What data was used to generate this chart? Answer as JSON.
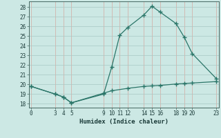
{
  "line1_x": [
    0,
    3,
    4,
    5,
    9,
    10,
    11,
    12,
    14,
    15,
    16,
    18,
    19,
    20,
    23
  ],
  "line1_y": [
    19.8,
    19.0,
    18.7,
    18.1,
    19.0,
    21.8,
    25.1,
    25.9,
    27.2,
    28.1,
    27.5,
    26.3,
    24.9,
    23.2,
    20.6
  ],
  "line2_x": [
    0,
    3,
    4,
    5,
    9,
    10,
    12,
    14,
    15,
    16,
    18,
    19,
    20,
    23
  ],
  "line2_y": [
    19.8,
    19.0,
    18.7,
    18.1,
    19.1,
    19.35,
    19.6,
    19.8,
    19.85,
    19.9,
    20.05,
    20.1,
    20.15,
    20.3
  ],
  "line_color": "#2a7568",
  "bg_color": "#cce8e4",
  "grid_color_minor": "#b8d8d4",
  "grid_color_major": "#a8c8c4",
  "xlabel": "Humidex (Indice chaleur)",
  "xticks": [
    0,
    3,
    4,
    5,
    9,
    10,
    11,
    12,
    14,
    15,
    16,
    18,
    19,
    20,
    23
  ],
  "yticks": [
    18,
    19,
    20,
    21,
    22,
    23,
    24,
    25,
    26,
    27,
    28
  ],
  "xlim": [
    -0.3,
    23.3
  ],
  "ylim": [
    17.6,
    28.6
  ],
  "marker": "+",
  "markersize": 4,
  "linewidth": 0.9,
  "tick_fontsize": 5.5,
  "xlabel_fontsize": 6.5
}
